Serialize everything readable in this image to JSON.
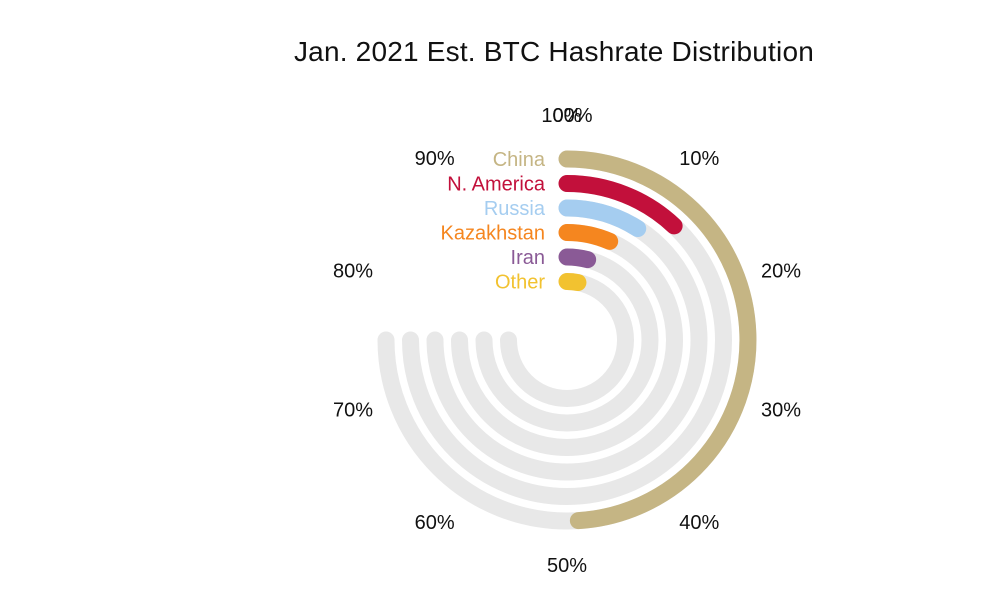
{
  "chart_data": {
    "type": "radial-bar",
    "title": "Jan. 2021 Est. BTC Hashrate Distribution",
    "ticks": [
      "0%",
      "10%",
      "20%",
      "30%",
      "40%",
      "50%",
      "60%",
      "70%",
      "80%",
      "90%",
      "100%"
    ],
    "axis_range": [
      0,
      100
    ],
    "track_extent": 75,
    "track_color": "#e8e8e8",
    "series": [
      {
        "name": "China",
        "value": 49,
        "color": "#c5b584"
      },
      {
        "name": "N. America",
        "value": 12,
        "color": "#c2103b"
      },
      {
        "name": "Russia",
        "value": 9,
        "color": "#a5cdf0"
      },
      {
        "name": "Kazakhstan",
        "value": 6.5,
        "color": "#f5861f"
      },
      {
        "name": "Iran",
        "value": 4,
        "color": "#8a5a96"
      },
      {
        "name": "Other",
        "value": 3,
        "color": "#f2c230"
      }
    ]
  }
}
